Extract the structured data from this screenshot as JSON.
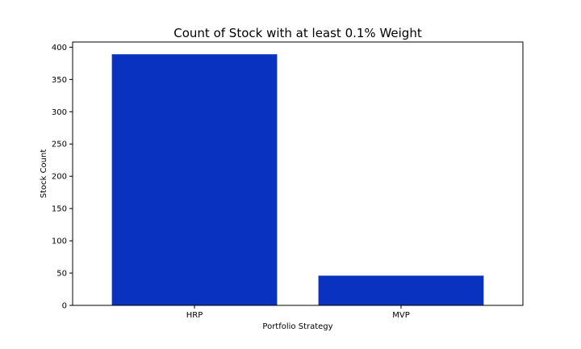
{
  "chart_data": {
    "type": "bar",
    "title": "Count of Stock with at least 0.1% Weight",
    "xlabel": "Portfolio Strategy",
    "ylabel": "Stock Count",
    "categories": [
      "HRP",
      "MVP"
    ],
    "values": [
      389,
      46
    ],
    "ylim": [
      0,
      408
    ],
    "yticks": [
      0,
      50,
      100,
      150,
      200,
      250,
      300,
      350,
      400
    ],
    "bar_color": "#0832bf",
    "grid": false,
    "legend": "none"
  }
}
